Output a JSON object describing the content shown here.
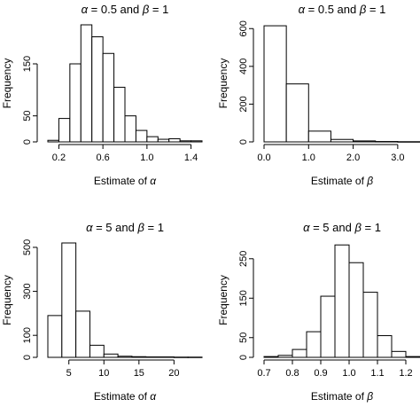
{
  "chart_data": [
    {
      "type": "bar",
      "title_parts": [
        "α",
        " = 0.5 and ",
        "β",
        " = 1"
      ],
      "xlabel_text": "Estimate of ",
      "xlabel_symbol": "α",
      "ylabel": "Frequency",
      "xlim": [
        0.1,
        1.5
      ],
      "ylim": [
        0,
        225
      ],
      "xticks": [
        0.2,
        0.6,
        1.0,
        1.4
      ],
      "xtick_labels": [
        "0.2",
        "0.6",
        "1.0",
        "1.4"
      ],
      "yticks": [
        0,
        50,
        150
      ],
      "ytick_labels": [
        "0",
        "50",
        "150"
      ],
      "bin_edges": [
        0.1,
        0.2,
        0.3,
        0.4,
        0.5,
        0.6,
        0.7,
        0.8,
        0.9,
        1.0,
        1.1,
        1.2,
        1.3,
        1.4,
        1.5
      ],
      "counts": [
        3,
        45,
        150,
        225,
        202,
        170,
        105,
        50,
        22,
        10,
        5,
        6,
        2,
        2
      ]
    },
    {
      "type": "bar",
      "title_parts": [
        "α",
        " = 0.5 and ",
        "β",
        " = 1"
      ],
      "xlabel_text": "Estimate of ",
      "xlabel_symbol": "β",
      "ylabel": "Frequency",
      "xlim": [
        0,
        3.5
      ],
      "ylim": [
        0,
        620
      ],
      "xticks": [
        0.0,
        1.0,
        2.0,
        3.0
      ],
      "xtick_labels": [
        "0.0",
        "1.0",
        "2.0",
        "3.0"
      ],
      "yticks": [
        0,
        200,
        400,
        600
      ],
      "ytick_labels": [
        "0",
        "200",
        "400",
        "600"
      ],
      "bin_edges": [
        0,
        0.5,
        1.0,
        1.5,
        2.0,
        2.5,
        3.0,
        3.5
      ],
      "counts": [
        615,
        307,
        57,
        13,
        5,
        2,
        1
      ]
    },
    {
      "type": "bar",
      "title_parts": [
        "α",
        " = 5 and ",
        "β",
        " = 1"
      ],
      "xlabel_text": "Estimate of ",
      "xlabel_symbol": "α",
      "ylabel": "Frequency",
      "xlim": [
        2,
        24
      ],
      "ylim": [
        0,
        520
      ],
      "xticks": [
        5,
        10,
        15,
        20
      ],
      "xtick_labels": [
        "5",
        "10",
        "15",
        "20"
      ],
      "yticks": [
        0,
        100,
        300,
        500
      ],
      "ytick_labels": [
        "0",
        "100",
        "300",
        "500"
      ],
      "bin_edges": [
        2,
        4,
        6,
        8,
        10,
        12,
        14,
        16,
        18,
        20,
        22,
        24
      ],
      "counts": [
        190,
        520,
        210,
        55,
        15,
        5,
        3,
        2,
        2,
        1,
        1
      ]
    },
    {
      "type": "bar",
      "title_parts": [
        "α",
        " = 5 and ",
        "β",
        " = 1"
      ],
      "xlabel_text": "Estimate of ",
      "xlabel_symbol": "β",
      "ylabel": "Frequency",
      "xlim": [
        0.7,
        1.25
      ],
      "ylim": [
        0,
        290
      ],
      "xticks": [
        0.7,
        0.8,
        0.9,
        1.0,
        1.1,
        1.2
      ],
      "xtick_labels": [
        "0.7",
        "0.8",
        "0.9",
        "1.0",
        "1.1",
        "1.2"
      ],
      "yticks": [
        0,
        50,
        150,
        250
      ],
      "ytick_labels": [
        "0",
        "50",
        "150",
        "250"
      ],
      "bin_edges": [
        0.7,
        0.75,
        0.8,
        0.85,
        0.9,
        0.95,
        1.0,
        1.05,
        1.1,
        1.15,
        1.2,
        1.25
      ],
      "counts": [
        2,
        5,
        20,
        65,
        155,
        285,
        240,
        165,
        55,
        15,
        2
      ]
    }
  ]
}
